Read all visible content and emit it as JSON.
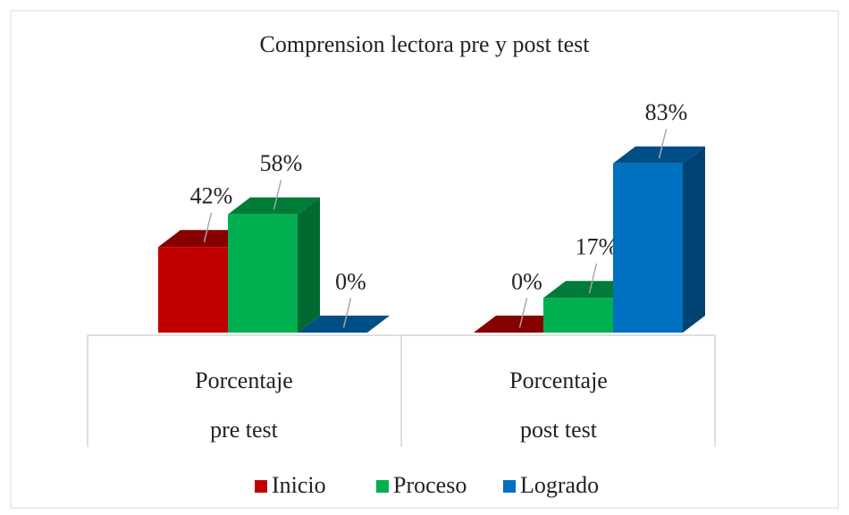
{
  "chart_data": {
    "type": "bar3d",
    "title": "Comprension lectora pre y post test",
    "categories": [
      "Porcentaje pre test",
      "Porcentaje post test"
    ],
    "series": [
      {
        "name": "Inicio",
        "color": "#c00000",
        "values": [
          42,
          0
        ],
        "value_labels": [
          "42%",
          "0%"
        ]
      },
      {
        "name": "Proceso",
        "color": "#00b050",
        "values": [
          58,
          17
        ],
        "value_labels": [
          "58%",
          "17%"
        ]
      },
      {
        "name": "Logrado",
        "color": "#0070c0",
        "values": [
          0,
          83
        ],
        "value_labels": [
          "0%",
          "83%"
        ]
      }
    ],
    "legend": "bottom"
  }
}
